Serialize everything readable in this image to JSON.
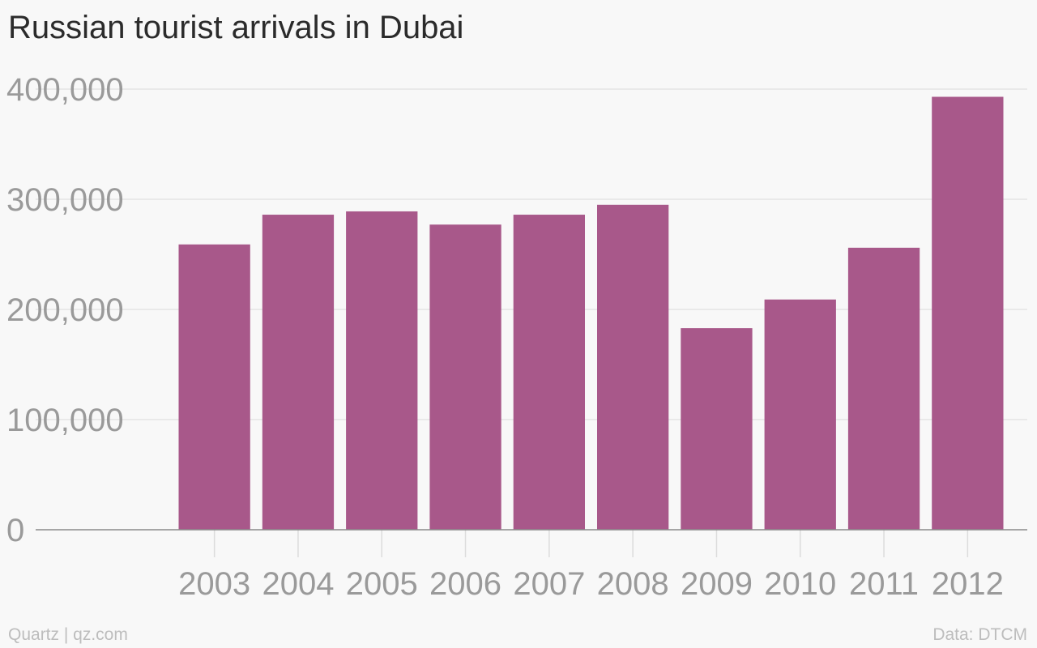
{
  "chart_data": {
    "type": "bar",
    "title": "Russian tourist arrivals in Dubai",
    "categories": [
      "2003",
      "2004",
      "2005",
      "2006",
      "2007",
      "2008",
      "2009",
      "2010",
      "2011",
      "2012"
    ],
    "values": [
      259000,
      286000,
      289000,
      277000,
      286000,
      295000,
      183000,
      209000,
      256000,
      393000
    ],
    "ylim": [
      0,
      400000
    ],
    "yticks": [
      0,
      100000,
      200000,
      300000,
      400000
    ],
    "ytick_labels": [
      "0",
      "100,000",
      "200,000",
      "300,000",
      "400,000"
    ],
    "xlabel": "",
    "ylabel": "",
    "grid": true,
    "legend": "none",
    "bar_color": "#a8588a"
  },
  "footer": {
    "credit": "Quartz | qz.com",
    "source": "Data: DTCM"
  }
}
